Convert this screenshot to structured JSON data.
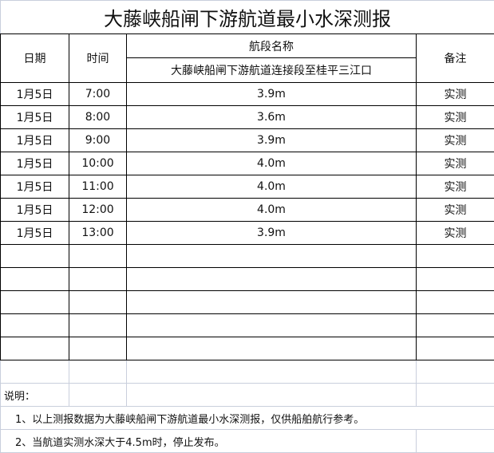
{
  "title": "大藤峡船闸下游航道最小水深测报",
  "headers": {
    "date": "日期",
    "time": "时间",
    "section_name": "航段名称",
    "section": "大藤峡船闸下游航道连接段至桂平三江口",
    "remark": "备注"
  },
  "rows": [
    {
      "date": "1月5日",
      "time": "7:00",
      "depth": "3.9m",
      "remark": "实测"
    },
    {
      "date": "1月5日",
      "time": "8:00",
      "depth": "3.6m",
      "remark": "实测"
    },
    {
      "date": "1月5日",
      "time": "9:00",
      "depth": "3.9m",
      "remark": "实测"
    },
    {
      "date": "1月5日",
      "time": "10:00",
      "depth": "4.0m",
      "remark": "实测"
    },
    {
      "date": "1月5日",
      "time": "11:00",
      "depth": "4.0m",
      "remark": "实测"
    },
    {
      "date": "1月5日",
      "time": "12:00",
      "depth": "4.0m",
      "remark": "实测"
    },
    {
      "date": "1月5日",
      "time": "13:00",
      "depth": "3.9m",
      "remark": "实测"
    }
  ],
  "empty_rows": 5,
  "notes": {
    "label": "说明：",
    "items": [
      "1、以上测报数据为大藤峡船闸下游航道最小水深测报，仅供船舶航行参考。",
      "2、当航道实测水深大于4.5m时，停止发布。"
    ]
  }
}
